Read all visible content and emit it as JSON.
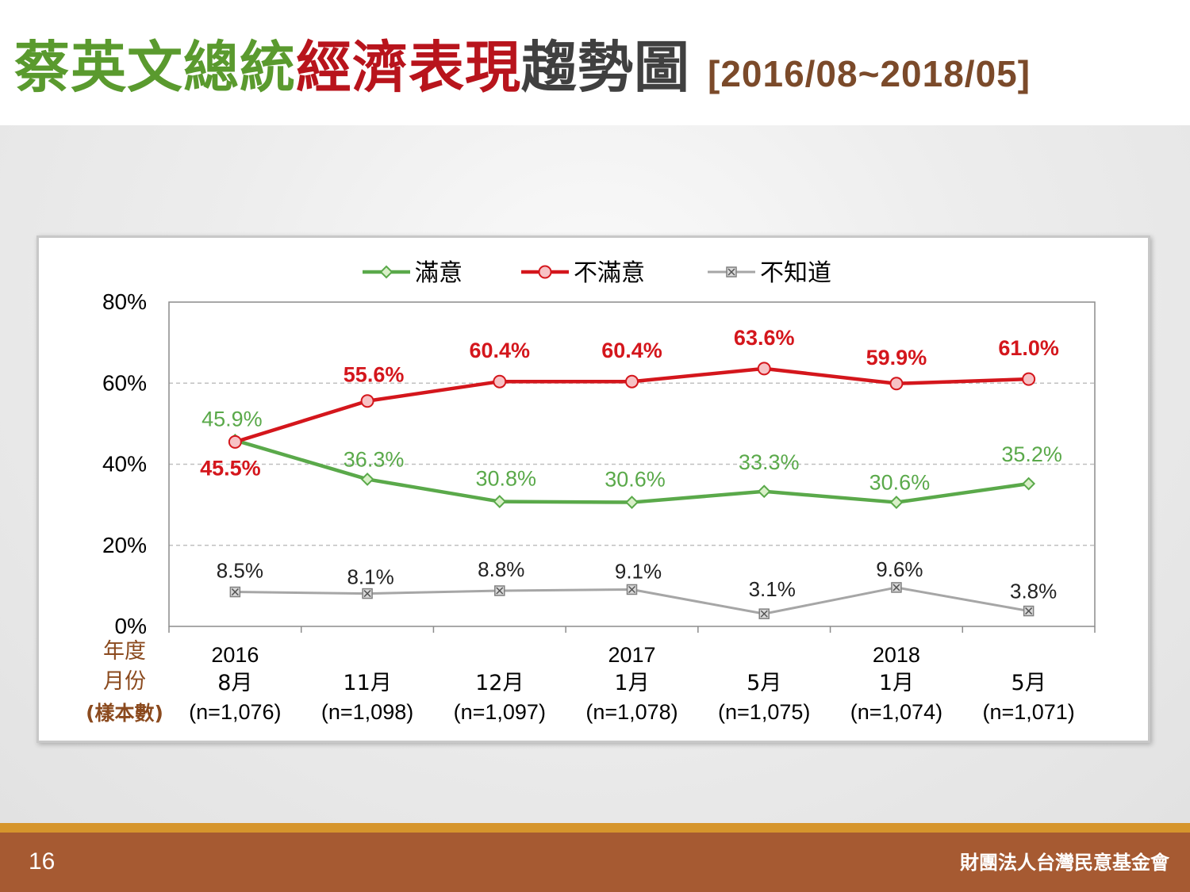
{
  "slide": {
    "title_part1": "蔡英文總統",
    "title_part2": "經濟表現",
    "title_part3": "趨勢圖",
    "title_range": "[2016/08~2018/05]",
    "page_number": "16",
    "organization": "財團法人台灣民意基金會",
    "colors": {
      "title_green": "#5a9a2e",
      "title_red": "#b8141c",
      "title_gray": "#404040",
      "range_brown": "#7b4a2a",
      "footer_brown": "#a65a32",
      "footer_stripe": "#d6952c"
    }
  },
  "chart_data": {
    "type": "line",
    "categories": [
      "8月",
      "11月",
      "12月",
      "1月",
      "5月",
      "1月",
      "5月"
    ],
    "year_labels": [
      "2016",
      "",
      "",
      "2017",
      "",
      "2018",
      ""
    ],
    "sample_sizes": [
      "(n=1,076)",
      "(n=1,098)",
      "(n=1,097)",
      "(n=1,078)",
      "(n=1,075)",
      "(n=1,074)",
      "(n=1,071)"
    ],
    "row_labels": {
      "year": "年度",
      "month": "月份",
      "sample": "(樣本數)"
    },
    "ylim": [
      0,
      80
    ],
    "yticks": [
      0,
      20,
      40,
      60,
      80
    ],
    "ytick_labels": [
      "0%",
      "20%",
      "40%",
      "60%",
      "80%"
    ],
    "grid": true,
    "legend_position": "top",
    "series": [
      {
        "name": "滿意",
        "color": "#5aa94a",
        "marker": "diamond",
        "values": [
          45.9,
          36.3,
          30.8,
          30.6,
          33.3,
          30.6,
          35.2
        ],
        "labels": [
          "45.9%",
          "36.3%",
          "30.8%",
          "30.6%",
          "33.3%",
          "30.6%",
          "35.2%"
        ]
      },
      {
        "name": "不滿意",
        "color": "#d4161c",
        "marker": "circle",
        "values": [
          45.5,
          55.6,
          60.4,
          60.4,
          63.6,
          59.9,
          61.0
        ],
        "labels": [
          "45.5%",
          "55.6%",
          "60.4%",
          "60.4%",
          "63.6%",
          "59.9%",
          "61.0%"
        ]
      },
      {
        "name": "不知道",
        "color": "#a6a6a6",
        "marker": "square-x",
        "values": [
          8.5,
          8.1,
          8.8,
          9.1,
          3.1,
          9.6,
          3.8
        ],
        "labels": [
          "8.5%",
          "8.1%",
          "8.8%",
          "9.1%",
          "3.1%",
          "9.6%",
          "3.8%"
        ]
      }
    ]
  }
}
